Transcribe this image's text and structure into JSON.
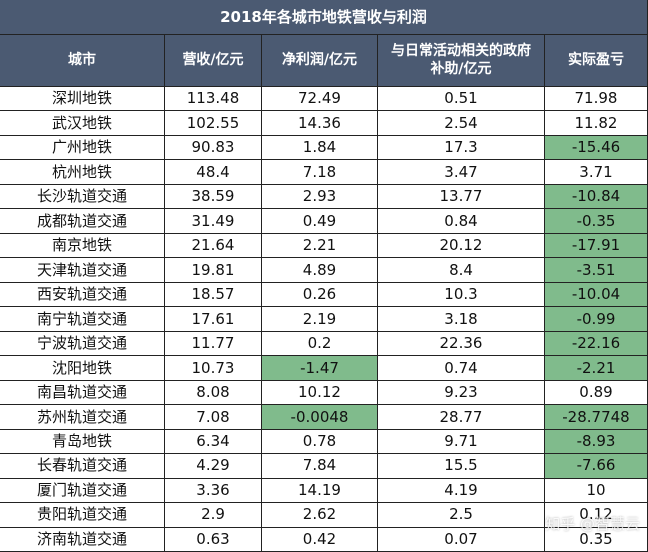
{
  "table": {
    "title": "2018年各城市地铁营收与利润",
    "columns": [
      "城市",
      "营收/亿元",
      "净利润/亿元",
      "与日常活动相关的政府补助/亿元",
      "实际盈亏"
    ],
    "rows": [
      [
        "深圳地铁",
        "113.48",
        "72.49",
        "0.51",
        "71.98"
      ],
      [
        "武汉地铁",
        "102.55",
        "14.36",
        "2.54",
        "11.82"
      ],
      [
        "广州地铁",
        "90.83",
        "1.84",
        "17.3",
        "-15.46"
      ],
      [
        "杭州地铁",
        "48.4",
        "7.18",
        "3.47",
        "3.71"
      ],
      [
        "长沙轨道交通",
        "38.59",
        "2.93",
        "13.77",
        "-10.84"
      ],
      [
        "成都轨道交通",
        "31.49",
        "0.49",
        "0.84",
        "-0.35"
      ],
      [
        "南京地铁",
        "21.64",
        "2.21",
        "20.12",
        "-17.91"
      ],
      [
        "天津轨道交通",
        "19.81",
        "4.89",
        "8.4",
        "-3.51"
      ],
      [
        "西安轨道交通",
        "18.57",
        "0.26",
        "10.3",
        "-10.04"
      ],
      [
        "南宁轨道交通",
        "17.61",
        "2.19",
        "3.18",
        "-0.99"
      ],
      [
        "宁波轨道交通",
        "11.77",
        "0.2",
        "22.36",
        "-22.16"
      ],
      [
        "沈阳地铁",
        "10.73",
        "-1.47",
        "0.74",
        "-2.21"
      ],
      [
        "南昌轨道交通",
        "8.08",
        "10.12",
        "9.23",
        "0.89"
      ],
      [
        "苏州轨道交通",
        "7.08",
        "-0.0048",
        "28.77",
        "-28.7748"
      ],
      [
        "青岛地铁",
        "6.34",
        "0.78",
        "9.71",
        "-8.93"
      ],
      [
        "长春轨道交通",
        "4.29",
        "7.84",
        "15.5",
        "-7.66"
      ],
      [
        "厦门轨道交通",
        "3.36",
        "14.19",
        "4.19",
        "10"
      ],
      [
        "贵阳轨道交通",
        "2.9",
        "2.62",
        "2.5",
        "0.12"
      ],
      [
        "济南轨道交通",
        "0.63",
        "0.42",
        "0.07",
        "0.35"
      ]
    ],
    "header_color": "#4b5a72",
    "negative_color": "#80bb8c"
  },
  "watermark": "知乎 @智慧云"
}
